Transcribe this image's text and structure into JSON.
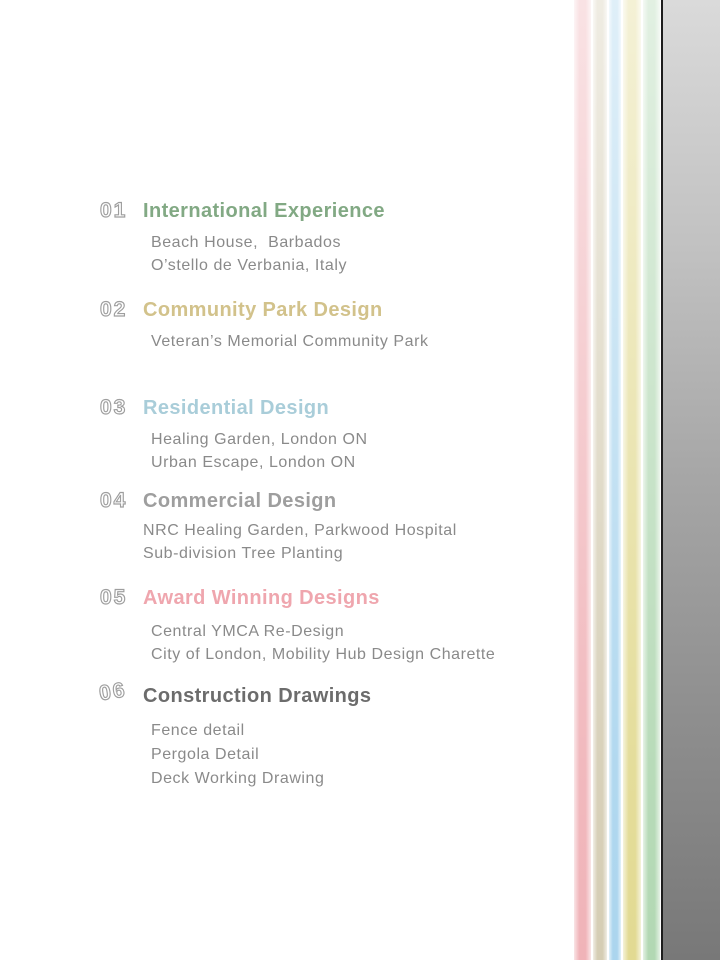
{
  "sections": [
    {
      "number": "01",
      "title": "International Experience",
      "color": "#82a984",
      "items": [
        "Beach House,  Barbados",
        "O’stello de Verbania, Italy"
      ]
    },
    {
      "number": "02",
      "title": "Community Park Design",
      "color": "#d2c28b",
      "items": [
        "Veteran’s Memorial Community Park"
      ]
    },
    {
      "number": "03",
      "title": "Residential Design",
      "color": "#a9cdd9",
      "items": [
        "Healing Garden, London ON",
        "Urban Escape, London ON"
      ]
    },
    {
      "number": "04",
      "title": "Commercial Design",
      "color": "#9e9e9e",
      "items": [
        "NRC Healing Garden, Parkwood Hospital",
        "Sub-division Tree Planting"
      ]
    },
    {
      "number": "05",
      "title": "Award Winning Designs",
      "color": "#efa6ae",
      "items": [
        "Central YMCA Re-Design",
        "City of London, Mobility Hub Design Charette"
      ]
    },
    {
      "number": "06",
      "title": "Construction Drawings",
      "color": "#6c6c6c",
      "items": [
        "Fence detail",
        "Pergola Detail",
        "Deck Working Drawing"
      ]
    }
  ],
  "decor": {
    "section_number_outline_color": "#9e9e9e",
    "item_text_color": "#8a8a8a",
    "stripe_colors": {
      "pink": "#f0b3b8",
      "beige": "#d5cdb4",
      "blue": "#abd5ee",
      "yellow": "#e2da92",
      "green": "#b2d8b3"
    },
    "divider_line_color": "#1d1d1d",
    "gray_panel_top_color": "#dadada",
    "gray_panel_bottom_color": "#787878",
    "page_background": "#ffffff"
  }
}
